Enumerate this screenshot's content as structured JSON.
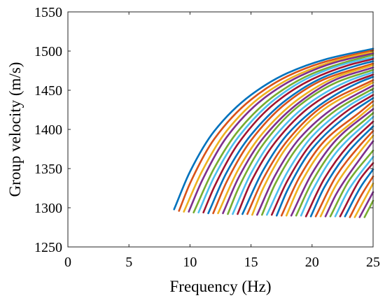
{
  "chart_data": {
    "type": "line",
    "title": "",
    "xlabel": "Frequency (Hz)",
    "ylabel": "Group velocity (m/s)",
    "xlim": [
      0,
      25
    ],
    "ylim": [
      1250,
      1550
    ],
    "xticks": [
      0,
      5,
      10,
      15,
      20,
      25
    ],
    "yticks": [
      1250,
      1300,
      1350,
      1400,
      1450,
      1500,
      1550
    ],
    "grid": false,
    "legend": "none",
    "palette": [
      "#0072BD",
      "#D95319",
      "#EDB120",
      "#7E2F8E",
      "#77AC30",
      "#4DBEEE",
      "#A2142F"
    ],
    "series": [
      {
        "mode": 1,
        "x": [
          8.7,
          10,
          12,
          15,
          18,
          21,
          25
        ],
        "y": [
          1298,
          1346,
          1398,
          1444,
          1472,
          1489,
          1503
        ]
      },
      {
        "mode": 2,
        "x": [
          9.1,
          10,
          12,
          15,
          18,
          21,
          25
        ],
        "y": [
          1296,
          1331,
          1388,
          1438,
          1468,
          1486,
          1501
        ]
      },
      {
        "mode": 3,
        "x": [
          9.5,
          11,
          13,
          16,
          19,
          22,
          25
        ],
        "y": [
          1295,
          1347,
          1398,
          1444,
          1471,
          1488,
          1499
        ]
      },
      {
        "mode": 4,
        "x": [
          9.9,
          11,
          13,
          16,
          19,
          22,
          25
        ],
        "y": [
          1295,
          1335,
          1390,
          1439,
          1468,
          1486,
          1497
        ]
      },
      {
        "mode": 5,
        "x": [
          10.3,
          12,
          14,
          17,
          20,
          23,
          25
        ],
        "y": [
          1294,
          1351,
          1399,
          1444,
          1471,
          1487,
          1495
        ]
      },
      {
        "mode": 6,
        "x": [
          10.7,
          12,
          14,
          17,
          20,
          23,
          25
        ],
        "y": [
          1294,
          1340,
          1391,
          1439,
          1468,
          1485,
          1492
        ]
      },
      {
        "mode": 7,
        "x": [
          11.1,
          12,
          14,
          17,
          20,
          23,
          25
        ],
        "y": [
          1294,
          1327,
          1383,
          1434,
          1464,
          1482,
          1490
        ]
      },
      {
        "mode": 8,
        "x": [
          11.5,
          13,
          15,
          18,
          21,
          24,
          25
        ],
        "y": [
          1293,
          1345,
          1393,
          1439,
          1467,
          1483,
          1487
        ]
      },
      {
        "mode": 9,
        "x": [
          11.9,
          13,
          15,
          18,
          21,
          25
        ],
        "y": [
          1293,
          1333,
          1386,
          1435,
          1464,
          1484
        ]
      },
      {
        "mode": 10,
        "x": [
          12.3,
          14,
          16,
          19,
          22,
          25
        ],
        "y": [
          1293,
          1350,
          1396,
          1440,
          1467,
          1482
        ]
      },
      {
        "mode": 11,
        "x": [
          12.7,
          14,
          16,
          19,
          22,
          25
        ],
        "y": [
          1293,
          1339,
          1389,
          1435,
          1464,
          1479
        ]
      },
      {
        "mode": 12,
        "x": [
          13.1,
          14,
          16,
          19,
          22,
          25
        ],
        "y": [
          1292,
          1326,
          1381,
          1431,
          1460,
          1476
        ]
      },
      {
        "mode": 13,
        "x": [
          13.5,
          15,
          17,
          20,
          23,
          25
        ],
        "y": [
          1292,
          1344,
          1392,
          1436,
          1462,
          1473
        ]
      },
      {
        "mode": 14,
        "x": [
          13.9,
          15,
          17,
          20,
          23,
          25
        ],
        "y": [
          1292,
          1333,
          1384,
          1431,
          1458,
          1470
        ]
      },
      {
        "mode": 15,
        "x": [
          14.3,
          16,
          18,
          21,
          24,
          25
        ],
        "y": [
          1292,
          1348,
          1394,
          1435,
          1461,
          1467
        ]
      },
      {
        "mode": 16,
        "x": [
          14.7,
          16,
          18,
          21,
          25
        ],
        "y": [
          1292,
          1337,
          1386,
          1431,
          1463
        ]
      },
      {
        "mode": 17,
        "x": [
          15.1,
          16,
          18,
          21,
          25
        ],
        "y": [
          1291,
          1325,
          1379,
          1426,
          1460
        ]
      },
      {
        "mode": 18,
        "x": [
          15.5,
          17,
          19,
          22,
          25
        ],
        "y": [
          1291,
          1342,
          1389,
          1430,
          1456
        ]
      },
      {
        "mode": 19,
        "x": [
          15.9,
          17,
          19,
          22,
          25
        ],
        "y": [
          1291,
          1331,
          1381,
          1425,
          1452
        ]
      },
      {
        "mode": 20,
        "x": [
          16.3,
          18,
          20,
          23,
          25
        ],
        "y": [
          1291,
          1346,
          1391,
          1430,
          1448
        ]
      },
      {
        "mode": 21,
        "x": [
          16.7,
          18,
          20,
          23,
          25
        ],
        "y": [
          1291,
          1335,
          1383,
          1425,
          1444
        ]
      },
      {
        "mode": 22,
        "x": [
          17.1,
          18,
          20,
          23,
          25
        ],
        "y": [
          1290,
          1323,
          1375,
          1419,
          1440
        ]
      },
      {
        "mode": 23,
        "x": [
          17.5,
          19,
          21,
          24,
          25
        ],
        "y": [
          1290,
          1340,
          1385,
          1423,
          1436
        ]
      },
      {
        "mode": 24,
        "x": [
          17.9,
          19,
          21,
          24,
          25
        ],
        "y": [
          1290,
          1329,
          1377,
          1418,
          1431
        ]
      },
      {
        "mode": 25,
        "x": [
          18.3,
          20,
          22,
          25
        ],
        "y": [
          1290,
          1344,
          1387,
          1426
        ]
      },
      {
        "mode": 26,
        "x": [
          18.7,
          20,
          22,
          25
        ],
        "y": [
          1290,
          1333,
          1379,
          1421
        ]
      },
      {
        "mode": 27,
        "x": [
          19.1,
          20,
          22,
          25
        ],
        "y": [
          1290,
          1321,
          1371,
          1416
        ]
      },
      {
        "mode": 28,
        "x": [
          19.5,
          21,
          23,
          25
        ],
        "y": [
          1289,
          1337,
          1380,
          1410
        ]
      },
      {
        "mode": 29,
        "x": [
          19.9,
          21,
          23,
          25
        ],
        "y": [
          1289,
          1326,
          1372,
          1404
        ]
      },
      {
        "mode": 30,
        "x": [
          20.3,
          22,
          24,
          25
        ],
        "y": [
          1289,
          1341,
          1381,
          1398
        ]
      },
      {
        "mode": 31,
        "x": [
          20.7,
          22,
          24,
          25
        ],
        "y": [
          1289,
          1330,
          1373,
          1392
        ]
      },
      {
        "mode": 32,
        "x": [
          21.1,
          22,
          24,
          25
        ],
        "y": [
          1289,
          1318,
          1364,
          1385
        ]
      },
      {
        "mode": 33,
        "x": [
          21.5,
          23,
          25
        ],
        "y": [
          1289,
          1334,
          1373
        ]
      },
      {
        "mode": 34,
        "x": [
          21.9,
          23,
          25
        ],
        "y": [
          1289,
          1323,
          1365
        ]
      },
      {
        "mode": 35,
        "x": [
          22.3,
          24,
          25
        ],
        "y": [
          1289,
          1338,
          1357
        ]
      },
      {
        "mode": 36,
        "x": [
          22.7,
          24,
          25
        ],
        "y": [
          1289,
          1327,
          1349
        ]
      },
      {
        "mode": 37,
        "x": [
          23.1,
          24,
          25
        ],
        "y": [
          1288,
          1315,
          1340
        ]
      },
      {
        "mode": 38,
        "x": [
          23.5,
          25
        ],
        "y": [
          1288,
          1331
        ]
      },
      {
        "mode": 39,
        "x": [
          23.9,
          25
        ],
        "y": [
          1288,
          1320
        ]
      },
      {
        "mode": 40,
        "x": [
          24.3,
          25
        ],
        "y": [
          1288,
          1309
        ]
      }
    ]
  }
}
